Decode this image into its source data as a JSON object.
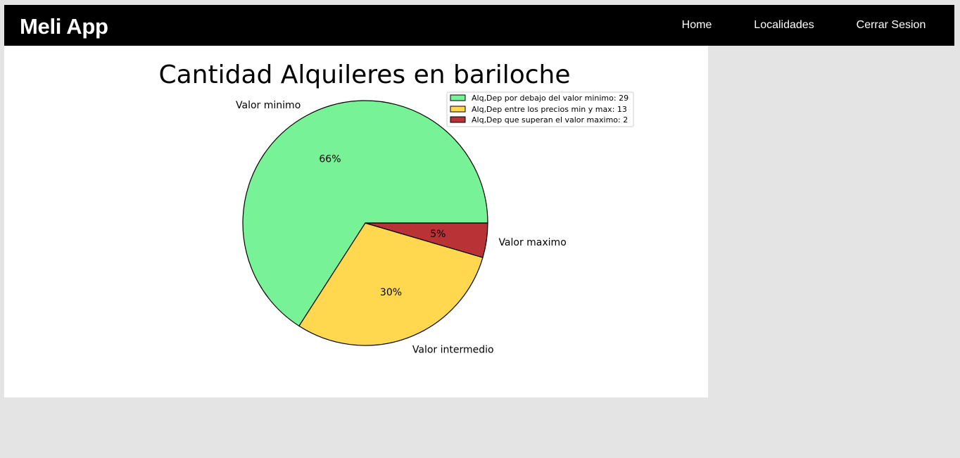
{
  "navbar": {
    "brand": "Meli App",
    "links": [
      {
        "label": "Home"
      },
      {
        "label": "Localidades"
      },
      {
        "label": "Cerrar Sesion"
      }
    ]
  },
  "colors": {
    "navbar_bg": "#000000",
    "page_bg": "#e4e4e4",
    "panel_bg": "#ffffff"
  },
  "chart_data": {
    "type": "pie",
    "title": "Cantidad Alquileres en bariloche",
    "categories": [
      "Valor minimo",
      "Valor intermedio",
      "Valor maximo"
    ],
    "values": [
      29,
      13,
      2
    ],
    "percent_labels": [
      "66%",
      "30%",
      "5%"
    ],
    "colors": [
      "#78f297",
      "#ffd84f",
      "#b83236"
    ],
    "legend": {
      "placement": "top-right",
      "entries": [
        "Alq,Dep por debajo del valor minimo: 29",
        "Alq,Dep entre los precios min y max: 13",
        "Alq,Dep que superan el valor maximo: 2"
      ]
    }
  }
}
